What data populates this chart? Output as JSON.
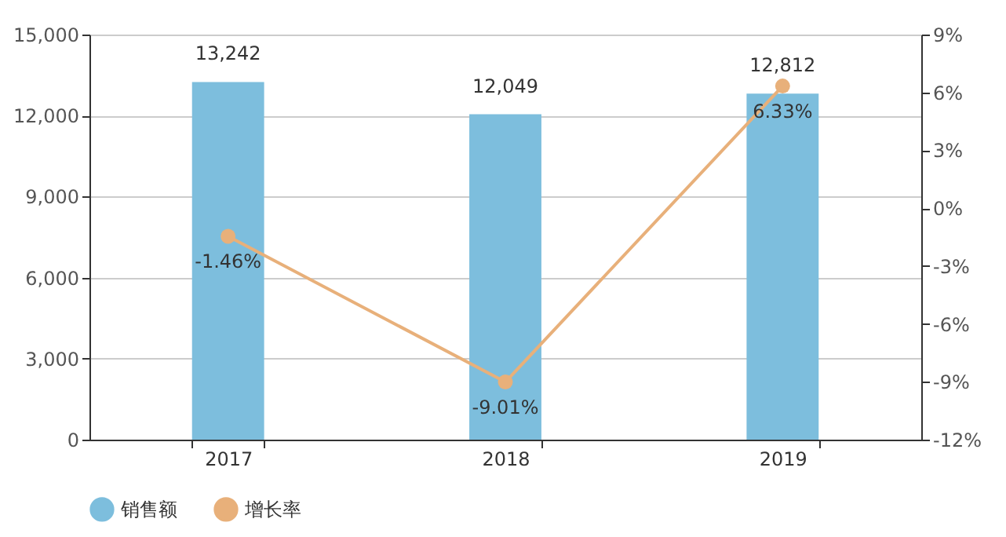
{
  "chart_data": {
    "type": "bar",
    "categories": [
      "2017",
      "2018",
      "2019"
    ],
    "series": [
      {
        "name": "销售额",
        "color": "#7dbedd",
        "values": [
          13242,
          12049,
          12812
        ],
        "value_labels": [
          "13,242",
          "12,049",
          "12,812"
        ]
      },
      {
        "name": "增长率",
        "type": "line",
        "axis": "y2",
        "color": "#e8b07a",
        "values": [
          -1.46,
          -9.01,
          6.33
        ],
        "value_labels": [
          "-1.46%",
          "-9.01%",
          "6.33%"
        ],
        "marker": "circle"
      }
    ],
    "ylim": [
      0,
      15000
    ],
    "yticks": [
      {
        "value": 0,
        "label": "0"
      },
      {
        "value": 3000,
        "label": "3,000"
      },
      {
        "value": 6000,
        "label": "6,000"
      },
      {
        "value": 9000,
        "label": "9,000"
      },
      {
        "value": 12000,
        "label": "12,000"
      },
      {
        "value": 15000,
        "label": "15,000"
      }
    ],
    "y2lim": [
      -12,
      9
    ],
    "y2ticks": [
      {
        "value": -12,
        "label": "-12%"
      },
      {
        "value": -9,
        "label": "-9%"
      },
      {
        "value": -6,
        "label": "-6%"
      },
      {
        "value": -3,
        "label": "-3%"
      },
      {
        "value": 0,
        "label": "0%"
      },
      {
        "value": 3,
        "label": "3%"
      },
      {
        "value": 6,
        "label": "6%"
      },
      {
        "value": 9,
        "label": "9%"
      }
    ],
    "grid": "y",
    "legend": "bottom"
  }
}
